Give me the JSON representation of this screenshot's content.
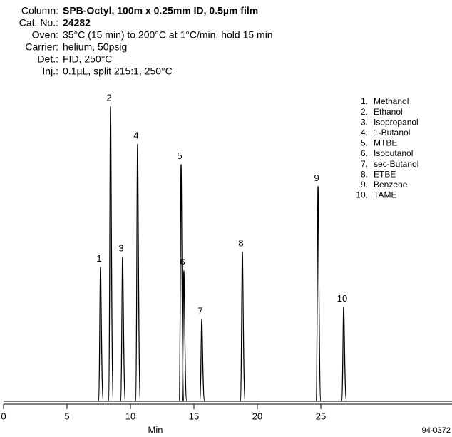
{
  "header": [
    {
      "label": "Column:",
      "value": "SPB-Octyl, 100m x 0.25mm ID, 0.5µm film",
      "bold": true
    },
    {
      "label": "Cat. No.:",
      "value": "24282",
      "bold": true
    },
    {
      "label": "Oven:",
      "value": "35°C (15 min) to 200°C at 1°C/min, hold 15 min",
      "bold": false
    },
    {
      "label": "Carrier:",
      "value": "helium, 50psig",
      "bold": false
    },
    {
      "label": "Det.:",
      "value": "FID, 250°C",
      "bold": false
    },
    {
      "label": "Inj.:",
      "value": "0.1µL, split 215:1, 250°C",
      "bold": false
    }
  ],
  "chart_data": {
    "type": "chromatogram",
    "x": [
      7.64,
      8.43,
      9.38,
      10.56,
      13.99,
      14.21,
      15.62,
      18.82,
      24.78,
      26.8
    ],
    "values": [
      185,
      406,
      199,
      354,
      326,
      180,
      113,
      206,
      296,
      130
    ],
    "peak_labels": [
      "1",
      "2",
      "3",
      "4",
      "5",
      "6",
      "7",
      "8",
      "9",
      "10"
    ],
    "color": "#000000",
    "xlim": [
      0,
      35.3
    ],
    "xticks": [
      0,
      5,
      10,
      15,
      20,
      25
    ],
    "ylim": [
      0,
      420
    ],
    "xlabel": "Min",
    "legend": [
      {
        "number": "1.",
        "name": "Methanol"
      },
      {
        "number": "2.",
        "name": "Ethanol"
      },
      {
        "number": "3.",
        "name": "Isopropanol"
      },
      {
        "number": "4.",
        "name": "1-Butanol"
      },
      {
        "number": "5.",
        "name": "MTBE"
      },
      {
        "number": "6.",
        "name": "Isobutanol"
      },
      {
        "number": "7.",
        "name": "sec-Butanol"
      },
      {
        "number": "8.",
        "name": "ETBE"
      },
      {
        "number": "9.",
        "name": "Benzene"
      },
      {
        "number": "10.",
        "name": "TAME"
      }
    ],
    "note": "94-0372"
  }
}
